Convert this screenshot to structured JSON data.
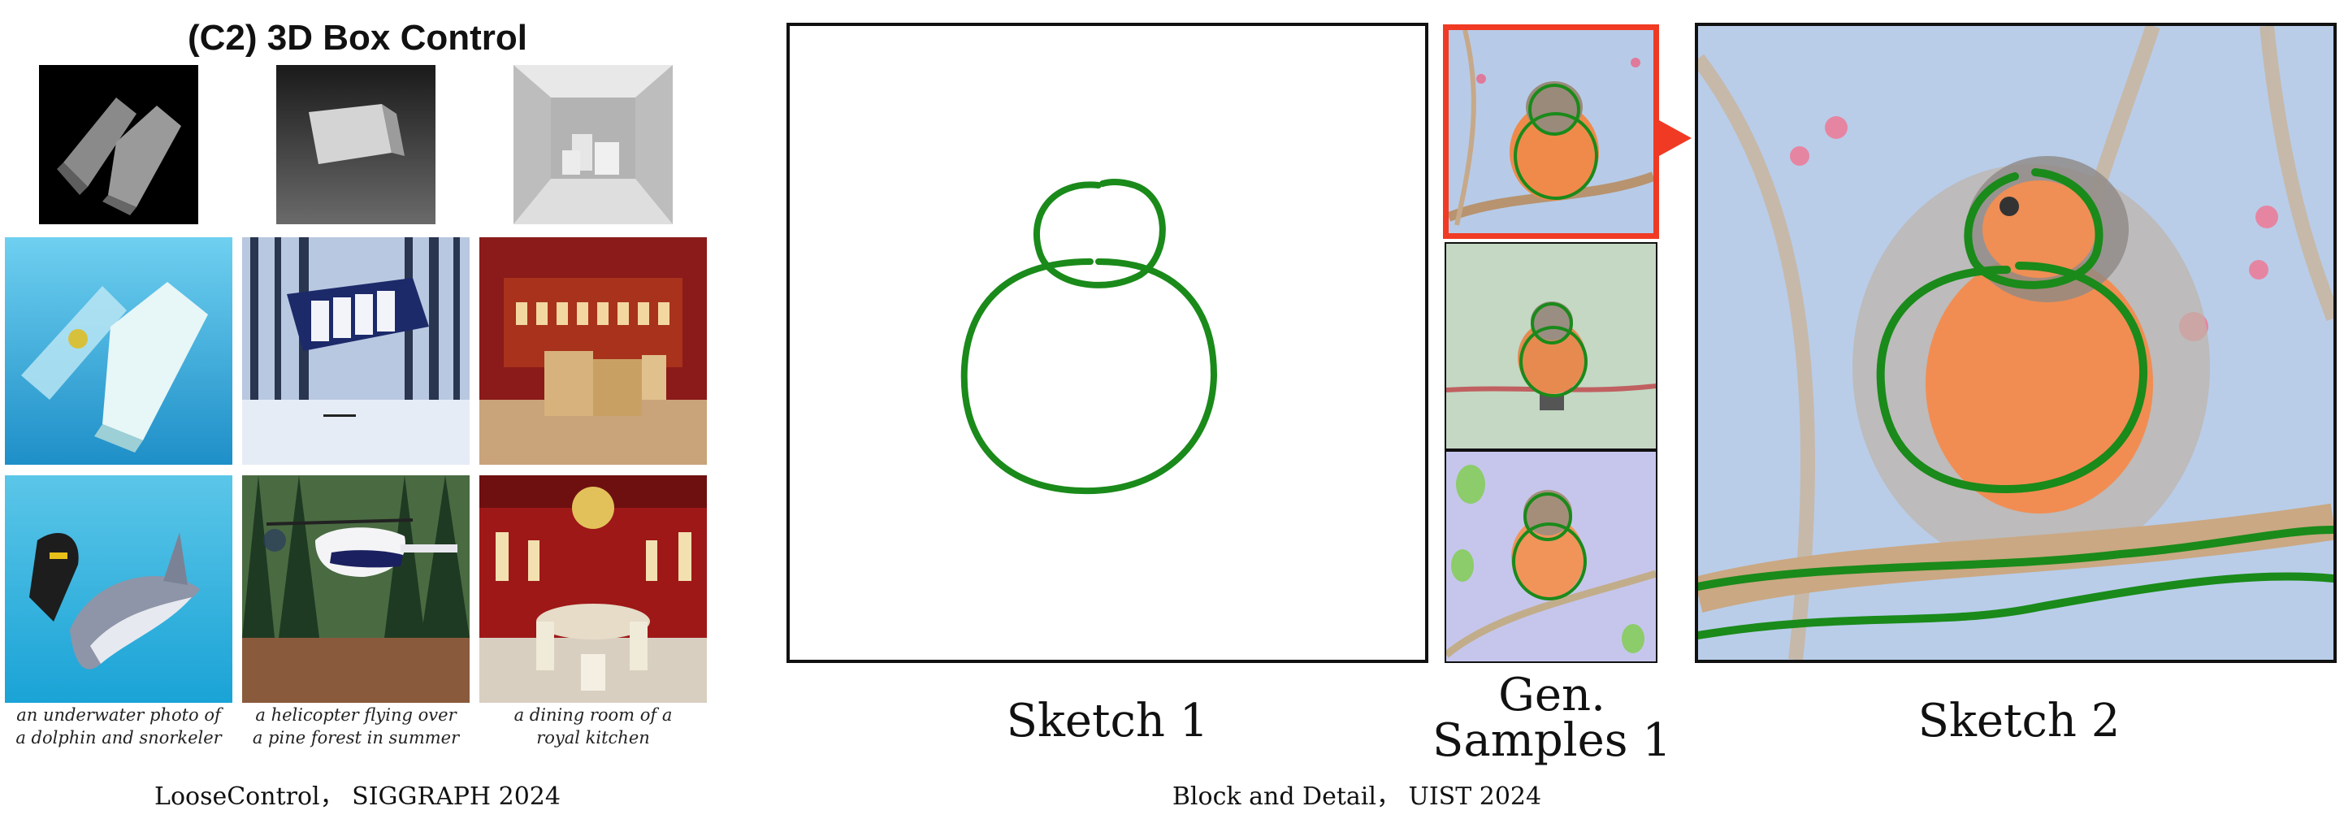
{
  "left": {
    "title": "(C2) 3D Box Control",
    "captions": [
      [
        "an underwater photo of",
        "a dolphin and snorkeler"
      ],
      [
        "a helicopter flying over",
        "a pine forest in summer"
      ],
      [
        "a dining room of a",
        "royal kitchen"
      ]
    ],
    "footer": "LooseControl， SIGGRAPH 2024"
  },
  "right": {
    "sketch1_label": "Sketch 1",
    "gen_label_line1": "Gen.",
    "gen_label_line2": "Samples 1",
    "sketch2_label": "Sketch 2",
    "footer": "Block and Detail， UIST 2024"
  },
  "colors": {
    "stroke_green": "#1a8a1a",
    "highlight_red": "#f03a24"
  }
}
